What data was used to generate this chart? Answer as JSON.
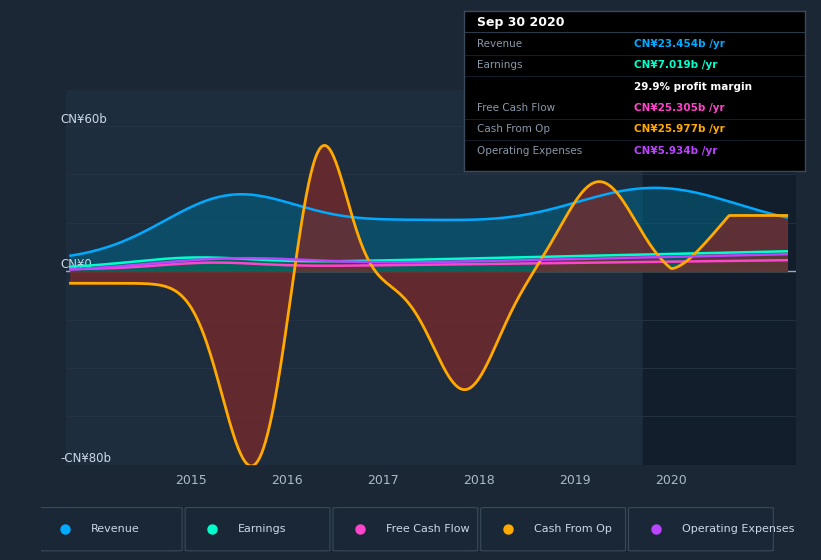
{
  "bg_color": "#1c2736",
  "plot_bg_color": "#1e2d3e",
  "grid_color": "#263445",
  "zero_line_color": "#99aabb",
  "highlight_bg": "#111c28",
  "ylim": [
    -80,
    75
  ],
  "xlim": [
    2013.7,
    2021.3
  ],
  "ylabel_60": "CN¥60b",
  "ylabel_0": "CN¥0",
  "ylabel_neg80": "-CN¥80b",
  "tooltip_title": "Sep 30 2020",
  "tooltip_rows": [
    {
      "label": "Revenue",
      "value": "CN¥23.454b /yr",
      "value_color": "#00aaff"
    },
    {
      "label": "Earnings",
      "value": "CN¥7.019b /yr",
      "value_color": "#00ffcc"
    },
    {
      "label": "",
      "value": "29.9% profit margin",
      "value_color": "#ffffff"
    },
    {
      "label": "Free Cash Flow",
      "value": "CN¥25.305b /yr",
      "value_color": "#ff44cc"
    },
    {
      "label": "Cash From Op",
      "value": "CN¥25.977b /yr",
      "value_color": "#ffaa00"
    },
    {
      "label": "Operating Expenses",
      "value": "CN¥5.934b /yr",
      "value_color": "#bb44ff"
    }
  ],
  "legend": [
    {
      "label": "Revenue",
      "color": "#00aaff"
    },
    {
      "label": "Earnings",
      "color": "#00ffcc"
    },
    {
      "label": "Free Cash Flow",
      "color": "#ff44cc"
    },
    {
      "label": "Cash From Op",
      "color": "#ffaa00"
    },
    {
      "label": "Operating Expenses",
      "color": "#bb44ff"
    }
  ],
  "revenue_color": "#00aaff",
  "earnings_color": "#00ffcc",
  "free_cash_flow_color": "#ff44cc",
  "cash_from_op_color": "#ffaa00",
  "operating_expenses_color": "#bb44ff",
  "revenue_fill": "#006688",
  "earnings_fill": "#007755",
  "cash_pos_fill": "#7a2a2a",
  "cash_neg_fill": "#7a2a2a"
}
